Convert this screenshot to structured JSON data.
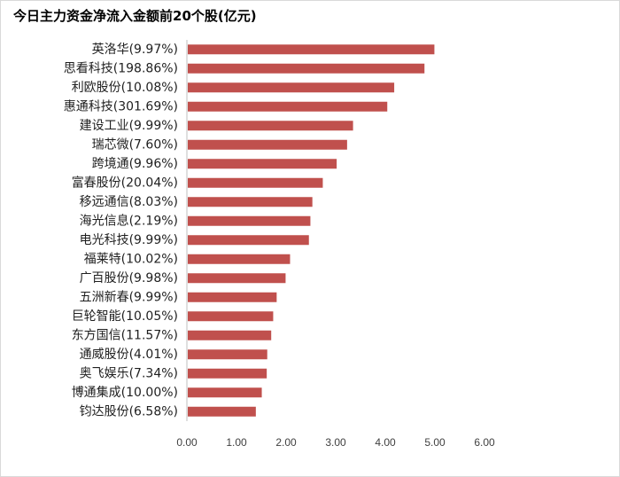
{
  "chart_data": {
    "type": "bar",
    "orientation": "horizontal",
    "title": "今日主力资金净流入金额前20个股(亿元)",
    "xlabel": "",
    "ylabel": "",
    "categories": [
      "英洛华(9.97%)",
      "思看科技(198.86%)",
      "利欧股份(10.08%)",
      "惠通科技(301.69%)",
      "建设工业(9.99%)",
      "瑞芯微(7.60%)",
      "跨境通(9.96%)",
      "富春股份(20.04%)",
      "移远通信(8.03%)",
      "海光信息(2.19%)",
      "电光科技(9.99%)",
      "福莱特(10.02%)",
      "广百股份(9.98%)",
      "五洲新春(9.99%)",
      "巨轮智能(10.05%)",
      "东方国信(11.57%)",
      "通威股份(4.01%)",
      "奥飞娱乐(7.34%)",
      "博通集成(10.00%)",
      "钧达股份(6.58%)"
    ],
    "values": [
      4.99,
      4.79,
      4.18,
      4.04,
      3.35,
      3.23,
      3.02,
      2.74,
      2.53,
      2.49,
      2.46,
      2.08,
      1.99,
      1.81,
      1.74,
      1.7,
      1.62,
      1.61,
      1.51,
      1.39
    ],
    "xlim": [
      0,
      6
    ],
    "xticks": [
      "0.00",
      "1.00",
      "2.00",
      "3.00",
      "4.00",
      "5.00",
      "6.00"
    ],
    "grid": false,
    "legend": "none",
    "bar_color": "#C0504D"
  }
}
